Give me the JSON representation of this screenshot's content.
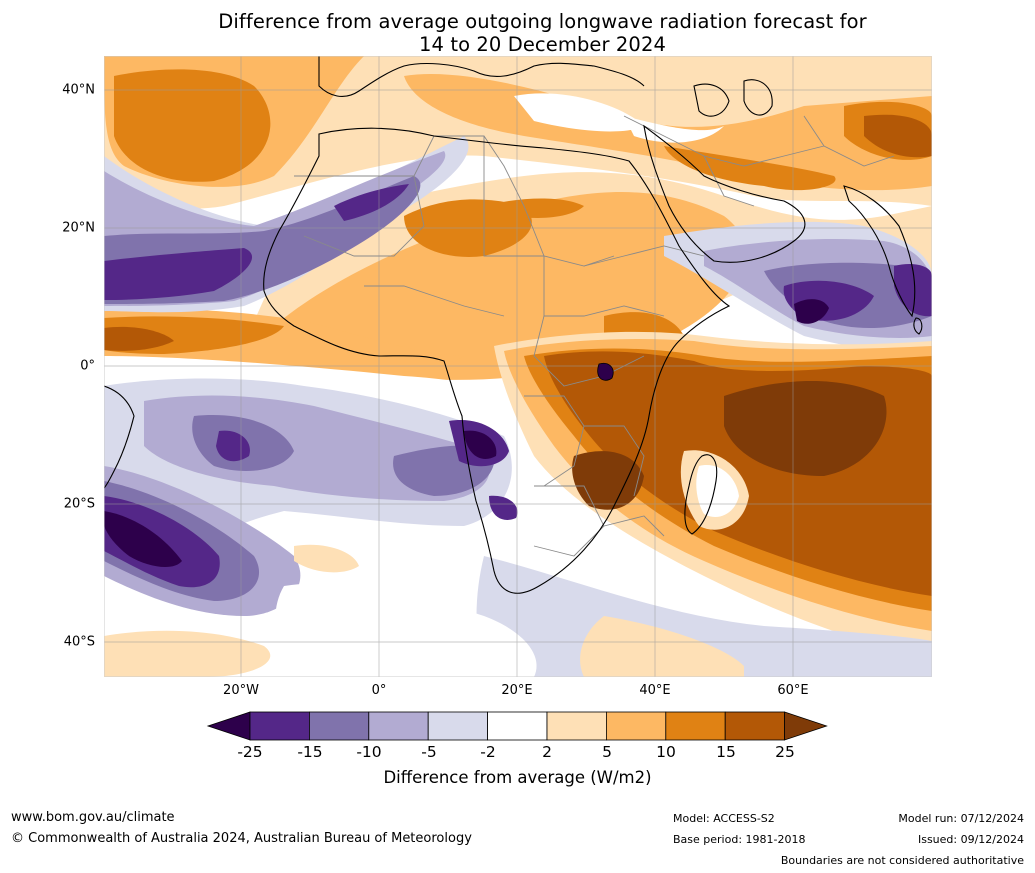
{
  "title_line1": "Difference from average outgoing longwave radiation forecast for",
  "title_line2": "14 to 20 December 2024",
  "lat_labels": [
    "40°N",
    "20°N",
    "0°",
    "20°S",
    "40°S"
  ],
  "lon_labels": [
    "20°W",
    "0°",
    "20°E",
    "40°E",
    "60°E"
  ],
  "legend": {
    "ticks": [
      "-25",
      "-15",
      "-10",
      "-5",
      "-2",
      "2",
      "5",
      "10",
      "15",
      "25"
    ],
    "colors": [
      "#2d004b",
      "#542788",
      "#8073ac",
      "#b2abd2",
      "#d8daeb",
      "#ffffff",
      "#fee0b6",
      "#fdb863",
      "#e08214",
      "#b35806",
      "#7f3b08"
    ],
    "label": "Difference from average (W/m2)"
  },
  "footer": {
    "website": "www.bom.gov.au/climate",
    "copyright": "© Commonwealth of Australia 2024, Australian Bureau of Meteorology",
    "model": "Model: ACCESS-S2",
    "base_period": "Base period: 1981-2018",
    "model_run": "Model run: 07/12/2024",
    "issued": "Issued: 09/12/2024",
    "disclaimer": "Boundaries are not considered authoritative"
  }
}
